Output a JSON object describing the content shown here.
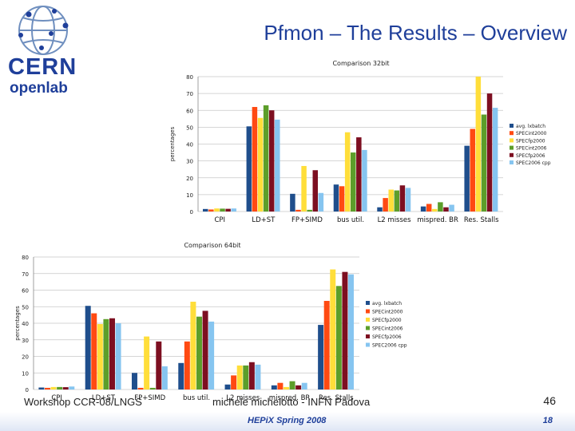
{
  "header": {
    "title": "Pfmon – The Results – Overview"
  },
  "logo": {
    "text_line1": "CERN",
    "text_line2": "openlab"
  },
  "footer": {
    "left": "Workshop CCR-08/LNGS",
    "mid": "michele michelotto - INFN Padova",
    "page_number": "46",
    "event": "HEPiX Spring 2008",
    "slide_number": "18"
  },
  "colors": {
    "title": "#1f3f9a",
    "series": [
      "#1f4e8c",
      "#ff4a12",
      "#ffde3a",
      "#5c9e2a",
      "#7d0f21",
      "#86c5f0"
    ]
  },
  "chart_data": [
    {
      "type": "bar",
      "title": "Comparison 32bit",
      "ylabel": "percentages",
      "xlabel": "",
      "ylim": [
        0,
        80
      ],
      "yticks": [
        0,
        10,
        20,
        30,
        40,
        50,
        60,
        70,
        80
      ],
      "legend": "right",
      "categories": [
        "CPI",
        "LD+ST",
        "FP+SIMD",
        "bus util.",
        "L2 misses",
        "mispred. BR",
        "Res. Stalls"
      ],
      "series": [
        {
          "name": "avg. lxbatch",
          "values": [
            1.5,
            50.5,
            10.5,
            16,
            2.5,
            3,
            39
          ]
        },
        {
          "name": "SPECint2000",
          "values": [
            1.2,
            62,
            1,
            15,
            8,
            4.5,
            49
          ]
        },
        {
          "name": "SPECfp2000",
          "values": [
            1.8,
            55.5,
            27,
            47,
            13,
            1.5,
            80
          ]
        },
        {
          "name": "SPECint2006",
          "values": [
            1.7,
            63,
            1,
            35,
            12.5,
            5.5,
            57.5
          ]
        },
        {
          "name": "SPECfp2006",
          "values": [
            1.6,
            60,
            24.5,
            44,
            15.5,
            2.5,
            70
          ]
        },
        {
          "name": "SPEC2006 cpp",
          "values": [
            1.8,
            54.5,
            11,
            36.5,
            14,
            4,
            61.5
          ]
        }
      ]
    },
    {
      "type": "bar",
      "title": "Comparison 64bit",
      "ylabel": "percentages",
      "xlabel": "",
      "ylim": [
        0,
        80
      ],
      "yticks": [
        0,
        10,
        20,
        30,
        40,
        50,
        60,
        70,
        80
      ],
      "legend": "right",
      "categories": [
        "CPI",
        "LD+ST",
        "FP+SIMD",
        "bus util.",
        "L2 misses",
        "mispred. BR",
        "Res. Stalls"
      ],
      "series": [
        {
          "name": "avg. lxbatch",
          "values": [
            1.2,
            50.5,
            10,
            16,
            3,
            2.5,
            39
          ]
        },
        {
          "name": "SPECint2000",
          "values": [
            1,
            46,
            1,
            29,
            8.5,
            4,
            53.5
          ]
        },
        {
          "name": "SPECfp2000",
          "values": [
            1.5,
            39.5,
            32,
            53,
            14.5,
            1.5,
            72.5
          ]
        },
        {
          "name": "SPECint2006",
          "values": [
            1.5,
            42.5,
            1,
            44,
            14.5,
            5,
            62.5
          ]
        },
        {
          "name": "SPECfp2006",
          "values": [
            1.4,
            43,
            29,
            47.5,
            16.5,
            2.5,
            71
          ]
        },
        {
          "name": "SPEC2006 cpp",
          "values": [
            1.8,
            40,
            14,
            41,
            15,
            4,
            69.5
          ]
        }
      ]
    }
  ]
}
